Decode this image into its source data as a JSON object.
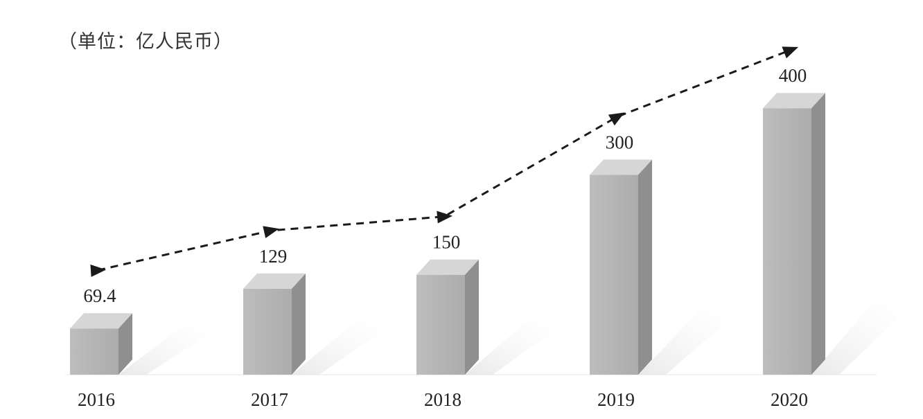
{
  "unit_label": "（单位：亿人民币）",
  "chart_data": {
    "type": "bar",
    "categories": [
      "2016",
      "2017",
      "2018",
      "2019",
      "2020"
    ],
    "values": [
      69.4,
      129,
      150,
      300,
      400
    ],
    "value_labels": [
      "69.4",
      "129",
      "150",
      "300",
      "400"
    ],
    "ylim": [
      0,
      450
    ],
    "grid": false,
    "trend_line": true,
    "colors": {
      "bar_front": "#b5b5b5",
      "bar_side": "#8f8f8f",
      "bar_top": "#d6d6d6",
      "trend": "#1a1a1a",
      "text": "#222222"
    }
  }
}
